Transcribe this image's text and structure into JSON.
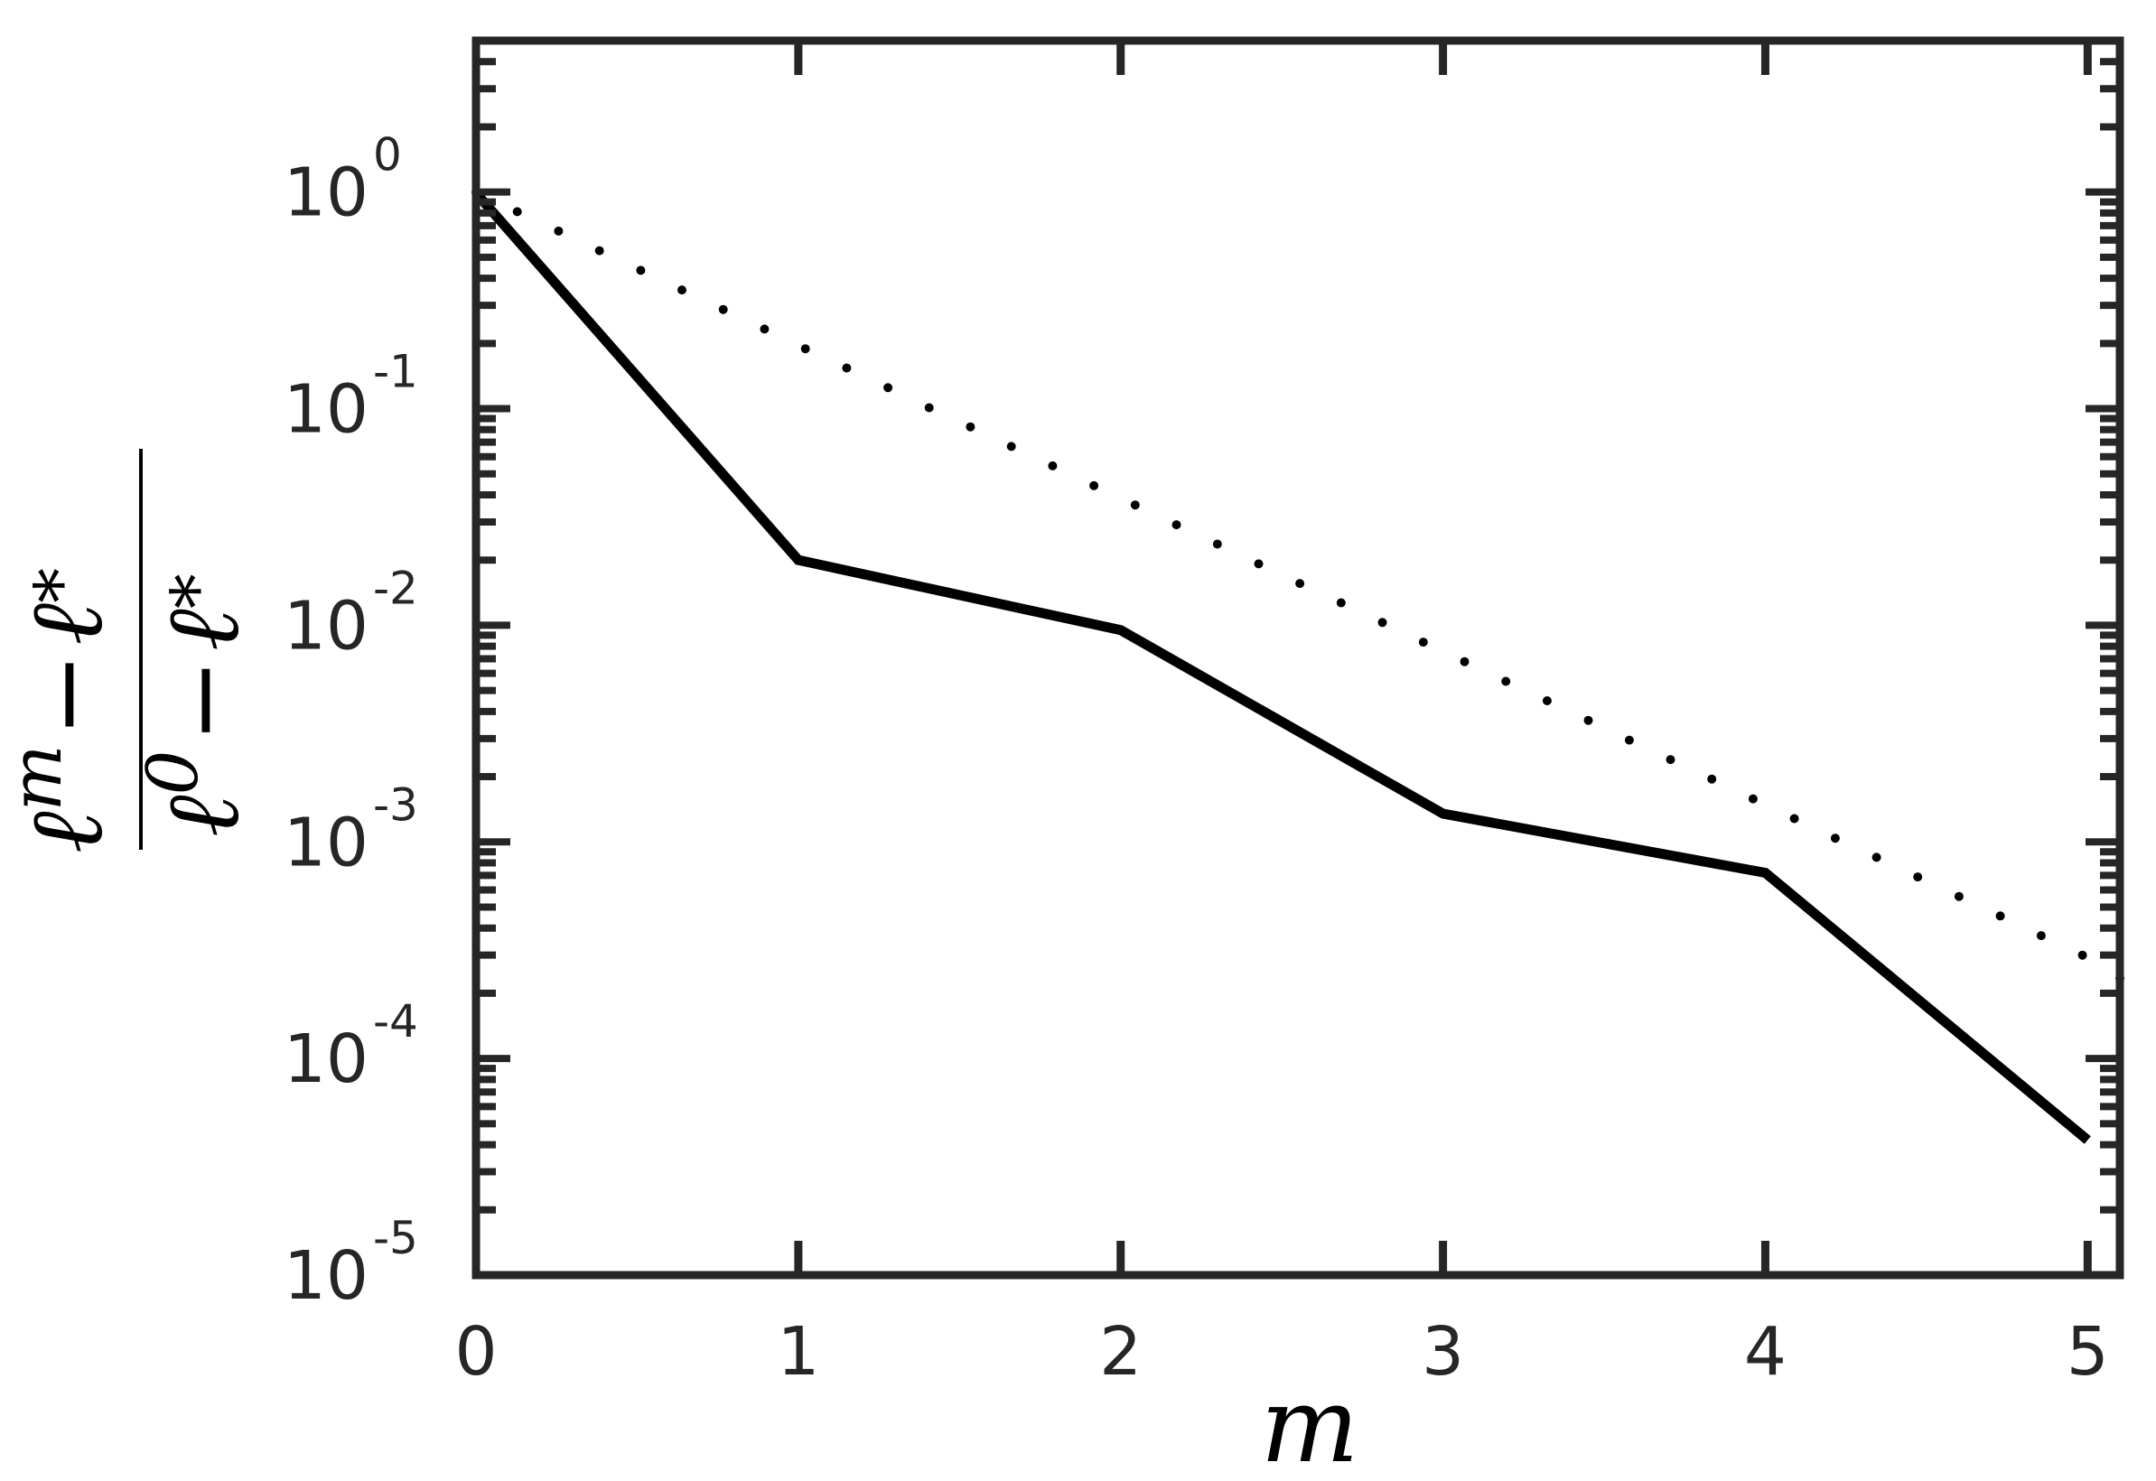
{
  "chart_data": {
    "type": "line",
    "title": "",
    "xlabel": "m",
    "ylabel": {
      "numerator": {
        "base": "ℓ",
        "sup": "m",
        "op": "−",
        "rhs_base": "ℓ",
        "rhs_sub": "*"
      },
      "denominator": {
        "base": "ℓ",
        "sup": "0",
        "op": "−",
        "rhs_base": "ℓ",
        "rhs_sub": "*"
      }
    },
    "x": [
      0,
      1,
      2,
      3,
      4,
      5
    ],
    "xlim": [
      0,
      5.1
    ],
    "ylim": [
      1e-05,
      5
    ],
    "yscale": "log",
    "grid": false,
    "xticks": [
      {
        "value": 0,
        "label": "0"
      },
      {
        "value": 1,
        "label": "1"
      },
      {
        "value": 2,
        "label": "2"
      },
      {
        "value": 3,
        "label": "3"
      },
      {
        "value": 4,
        "label": "4"
      },
      {
        "value": 5,
        "label": "5"
      }
    ],
    "yticks": [
      {
        "value": 1,
        "base": "10",
        "exp": "0"
      },
      {
        "value": 0.1,
        "base": "10",
        "exp": "-1"
      },
      {
        "value": 0.01,
        "base": "10",
        "exp": "-2"
      },
      {
        "value": 0.001,
        "base": "10",
        "exp": "-3"
      },
      {
        "value": 0.0001,
        "base": "10",
        "exp": "-4"
      },
      {
        "value": 1e-05,
        "base": "10",
        "exp": "-5"
      }
    ],
    "series": [
      {
        "style": "solid",
        "color": "#000000",
        "x": [
          0,
          1,
          2,
          3,
          4,
          5
        ],
        "y": [
          0.99,
          0.02,
          0.0095,
          0.00135,
          0.00072,
          4.2e-05
        ]
      },
      {
        "style": "dotted",
        "color": "#000000",
        "x": [
          0,
          0.128,
          0.256,
          0.383,
          0.511,
          0.639,
          0.767,
          0.895,
          1.022,
          1.15,
          1.278,
          1.406,
          1.534,
          1.661,
          1.789,
          1.917,
          2.045,
          2.173,
          2.3,
          2.428,
          2.556,
          2.684,
          2.812,
          2.939,
          3.067,
          3.195,
          3.323,
          3.451,
          3.578,
          3.706,
          3.834,
          3.962,
          4.09,
          4.217,
          4.345,
          4.473,
          4.601,
          4.729,
          4.856,
          4.984,
          5.1
        ],
        "y": [
          1.0,
          0.812,
          0.66,
          0.536,
          0.435,
          0.353,
          0.287,
          0.233,
          0.189,
          0.154,
          0.125,
          0.101,
          0.0824,
          0.0669,
          0.0544,
          0.0441,
          0.0359,
          0.0291,
          0.0237,
          0.0192,
          0.0156,
          0.0127,
          0.0103,
          0.00836,
          0.00679,
          0.00551,
          0.00448,
          0.00364,
          0.00295,
          0.0024,
          0.00195,
          0.00158,
          0.00128,
          0.00104,
          0.000848,
          0.000689,
          0.00056,
          0.000455,
          0.000369,
          0.0003,
          0.000235
        ]
      }
    ]
  }
}
